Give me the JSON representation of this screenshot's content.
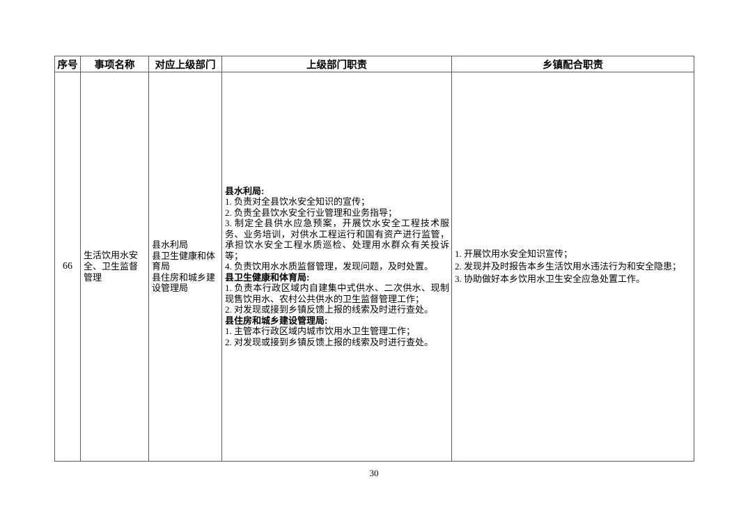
{
  "page": {
    "number": "30"
  },
  "table": {
    "headers": [
      "序号",
      "事项名称",
      "对应上级部门",
      "上级部门职责",
      "乡镇配合职责"
    ],
    "row": {
      "serial": "66",
      "item_name": "生活饮用水安全、卫生监督管理",
      "departments": [
        "县水利局",
        "县卫生健康和体育局",
        "县住房和城乡建设管理局"
      ],
      "superior_duties": [
        {
          "bold": true,
          "text": "县水利局:"
        },
        {
          "bold": false,
          "text": "1. 负责对全县饮水安全知识的宣传；"
        },
        {
          "bold": false,
          "text": "2. 负责全县饮水安全行业管理和业务指导；"
        },
        {
          "bold": false,
          "text": "3. 制定全县供水应急预案，开展饮水安全工程技术服务、业务培训，对供水工程运行和国有资产进行监管，承担饮水安全工程水质巡检、处理用水群众有关投诉等；"
        },
        {
          "bold": false,
          "text": "4. 负责饮用水水质监督管理，发现问题，及时处置。"
        },
        {
          "bold": true,
          "text": "县卫生健康和体育局:"
        },
        {
          "bold": false,
          "text": "1. 负责本行政区域内自建集中式供水、二次供水、现制现售饮用水、农村公共供水的卫生监督管理工作；"
        },
        {
          "bold": false,
          "text": "2. 对发现或接到乡镇反馈上报的线索及时进行查处。"
        },
        {
          "bold": true,
          "text": "县住房和城乡建设管理局:"
        },
        {
          "bold": false,
          "text": "1. 主管本行政区域内城市饮用水卫生管理工作；"
        },
        {
          "bold": false,
          "text": "2. 对发现或接到乡镇反馈上报的线索及时进行查处。"
        }
      ],
      "township_duties": [
        "1. 开展饮用水安全知识宣传；",
        "2. 发现并及时报告本乡生活饮用水违法行为和安全隐患；",
        "3. 协助做好本乡饮用水卫生安全应急处置工作。"
      ]
    }
  }
}
